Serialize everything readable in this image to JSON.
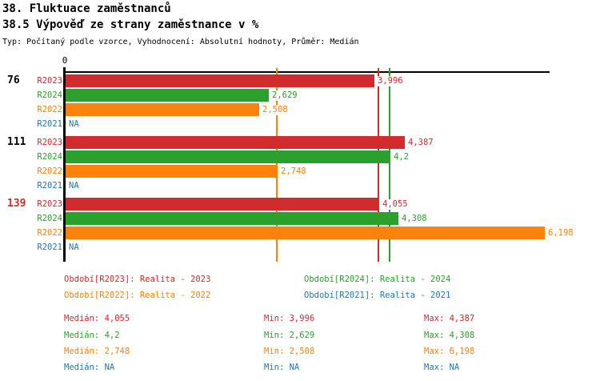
{
  "header": {
    "title": "38. Fluktuace zaměstnanců",
    "subtitle": "38.5 Výpověď ze strany zaměstnance v %",
    "meta": "Typ: Počítaný podle vzorce, Vyhodnocení: Absolutní hodnoty, Průměr: Medián"
  },
  "colors": {
    "R2023": "#d22b2b",
    "R2024": "#2ca02c",
    "R2022": "#fb820d",
    "R2021": "#1f77b4",
    "axis": "#000000",
    "group_label_default": "#000000",
    "group_label_highlight": "#d22b2b"
  },
  "chart_data": {
    "type": "bar",
    "orientation": "horizontal",
    "axis_tick_label": "0",
    "xlim": [
      0,
      6.27
    ],
    "series_order": [
      "R2023",
      "R2024",
      "R2022",
      "R2021"
    ],
    "groups": [
      {
        "label": "76",
        "label_color": "#000000",
        "bars": [
          {
            "series": "R2023",
            "value": 3.996,
            "display": "3,996"
          },
          {
            "series": "R2024",
            "value": 2.629,
            "display": "2,629"
          },
          {
            "series": "R2022",
            "value": 2.508,
            "display": "2,508"
          },
          {
            "series": "R2021",
            "value": null,
            "display": "NA"
          }
        ]
      },
      {
        "label": "111",
        "label_color": "#000000",
        "bars": [
          {
            "series": "R2023",
            "value": 4.387,
            "display": "4,387"
          },
          {
            "series": "R2024",
            "value": 4.2,
            "display": "4,2"
          },
          {
            "series": "R2022",
            "value": 2.748,
            "display": "2,748"
          },
          {
            "series": "R2021",
            "value": null,
            "display": "NA"
          }
        ]
      },
      {
        "label": "139",
        "label_color": "#d22b2b",
        "bars": [
          {
            "series": "R2023",
            "value": 4.055,
            "display": "4,055"
          },
          {
            "series": "R2024",
            "value": 4.308,
            "display": "4,308"
          },
          {
            "series": "R2022",
            "value": 6.198,
            "display": "6,198"
          },
          {
            "series": "R2021",
            "value": null,
            "display": "NA"
          }
        ]
      }
    ],
    "median_lines": [
      {
        "series": "R2022",
        "value": 2.748
      },
      {
        "series": "R2023",
        "value": 4.055
      },
      {
        "series": "R2024",
        "value": 4.2
      }
    ]
  },
  "legend": {
    "items": [
      {
        "series": "R2023",
        "label": "Období[R2023]: Realita - 2023"
      },
      {
        "series": "R2024",
        "label": "Období[R2024]: Realita - 2024"
      },
      {
        "series": "R2022",
        "label": "Období[R2022]: Realita - 2022"
      },
      {
        "series": "R2021",
        "label": "Období[R2021]: Realita - 2021"
      }
    ]
  },
  "stats": {
    "rows": [
      {
        "series": "R2023",
        "median": "Medián: 4,055",
        "min": "Min: 3,996",
        "max": "Max: 4,387"
      },
      {
        "series": "R2024",
        "median": "Medián: 4,2",
        "min": "Min: 2,629",
        "max": "Max: 4,308"
      },
      {
        "series": "R2022",
        "median": "Medián: 2,748",
        "min": "Min: 2,508",
        "max": "Max: 6,198"
      },
      {
        "series": "R2021",
        "median": "Medián: NA",
        "min": "Min: NA",
        "max": "Max: NA"
      }
    ]
  }
}
